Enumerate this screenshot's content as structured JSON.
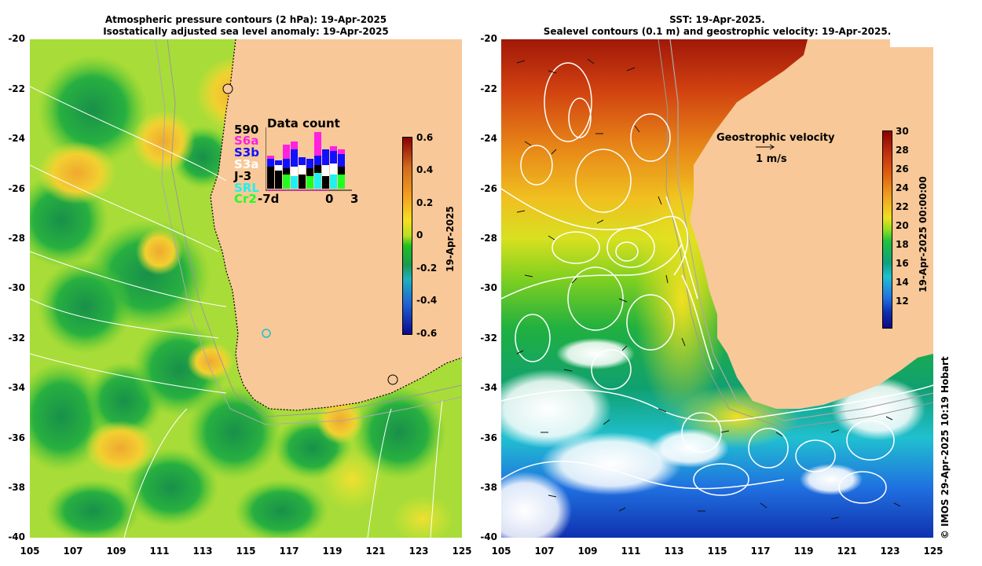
{
  "left_panel": {
    "title_line1": "Atmospheric pressure contours (2 hPa): 19-Apr-2025",
    "title_line2": "Isostatically adjusted sea level anomaly: 19-Apr-2025",
    "y_ticks": [
      "-20",
      "-22",
      "-24",
      "-26",
      "-28",
      "-30",
      "-32",
      "-34",
      "-36",
      "-38",
      "-40"
    ],
    "x_ticks": [
      "105",
      "107",
      "109",
      "111",
      "113",
      "115",
      "117",
      "119",
      "121",
      "123",
      "125"
    ],
    "colorbar": {
      "ticks": [
        "0.6",
        "0.4",
        "0.2",
        "0",
        "-0.2",
        "-0.4",
        "-0.6"
      ],
      "label": "19-Apr-2025",
      "colors": [
        "#8b0000",
        "#d2691e",
        "#f4a020",
        "#f5e020",
        "#b8e020",
        "#20c020",
        "#1a9a50",
        "#20b0c0",
        "#2060d0",
        "#0a0a90"
      ]
    },
    "data_count": {
      "title": "Data count",
      "total": "590",
      "satellites": [
        {
          "name": "S6a",
          "color": "#ff20e0"
        },
        {
          "name": "S3b",
          "color": "#1010ff"
        },
        {
          "name": "S3a",
          "color": "#ffffff"
        },
        {
          "name": "J-3",
          "color": "#000000"
        },
        {
          "name": "SRL",
          "color": "#20f0f0"
        },
        {
          "name": "Cr2",
          "color": "#20ff20"
        }
      ],
      "axis_left": "-7d",
      "axis_mid": "0",
      "axis_right": "3"
    }
  },
  "right_panel": {
    "title_line1": "SST: 19-Apr-2025.",
    "title_line2": "Sealevel contours (0.1 m) and geostrophic velocity: 19-Apr-2025.",
    "x_ticks": [
      "105",
      "107",
      "109",
      "111",
      "113",
      "115",
      "117",
      "119",
      "121",
      "123",
      "125"
    ],
    "y_ticks": [
      "-20",
      "-22",
      "-24",
      "-26",
      "-28",
      "-30",
      "-32",
      "-34",
      "-36",
      "-38",
      "-40"
    ],
    "colorbar": {
      "ticks": [
        "30",
        "28",
        "26",
        "24",
        "22",
        "20",
        "18",
        "16",
        "14",
        "12"
      ],
      "label": "19-Apr-2025 00:00:00",
      "colors": [
        "#8b0000",
        "#c03010",
        "#e06010",
        "#f0a020",
        "#f0e020",
        "#90e020",
        "#20c040",
        "#10a080",
        "#20c0d0",
        "#2070e0",
        "#1030b0",
        "#0a0a80"
      ]
    },
    "legend": {
      "title": "Geostrophic velocity",
      "scale": "1 m/s"
    }
  },
  "credit": "© IMOS 29-Apr-2025 10:19 Hobart"
}
